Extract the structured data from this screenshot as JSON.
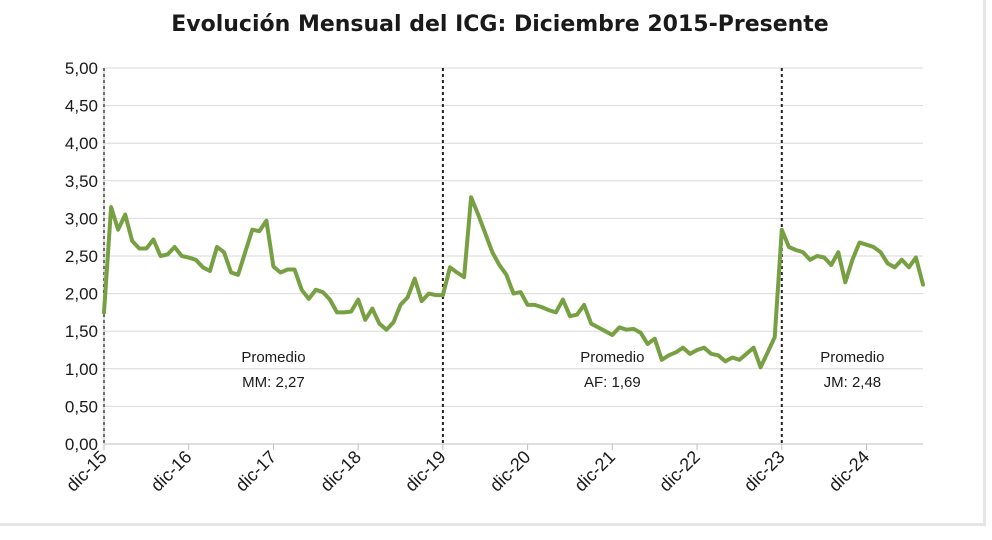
{
  "chart_data": {
    "type": "line",
    "title": "Evolución Mensual del ICG: Diciembre 2015-Presente",
    "xlabel": "",
    "ylabel": "",
    "ylim": [
      0,
      5
    ],
    "grid": true,
    "legend": "none",
    "y_ticks": [
      "0,00",
      "0,50",
      "1,00",
      "1,50",
      "2,00",
      "2,50",
      "3,00",
      "3,50",
      "4,00",
      "4,50",
      "5,00"
    ],
    "x_ticks": [
      "dic-15",
      "dic-16",
      "dic-17",
      "dic-18",
      "dic-19",
      "dic-20",
      "dic-21",
      "dic-22",
      "dic-23",
      "dic-24"
    ],
    "line_color": "#77a043",
    "period_dividers": [
      "dic-15",
      "dic-19",
      "dic-23"
    ],
    "annotations": [
      {
        "period": "dic-15 to dic-19",
        "line1": "Promedio",
        "line2": "MM: 2,27"
      },
      {
        "period": "dic-19 to dic-23",
        "line1": "Promedio",
        "line2": "AF: 1,69"
      },
      {
        "period": "dic-23 onward",
        "line1": "Promedio",
        "line2": "JM: 2,48"
      }
    ],
    "series": [
      {
        "values": [
          1.75,
          3.15,
          2.85,
          3.05,
          2.7,
          2.6,
          2.6,
          2.72,
          2.5,
          2.52,
          2.62,
          2.5,
          2.48,
          2.45,
          2.35,
          2.3,
          2.62,
          2.55,
          2.28,
          2.25,
          2.55,
          2.85,
          2.83,
          2.97,
          2.36,
          2.28,
          2.32,
          2.32,
          2.05,
          1.93,
          2.05,
          2.02,
          1.92,
          1.75,
          1.75,
          1.76,
          1.92,
          1.65,
          1.8,
          1.6,
          1.52,
          1.62,
          1.85,
          1.95,
          2.2,
          1.9,
          2.0,
          1.98,
          1.98,
          2.35,
          2.28,
          2.22,
          3.28,
          3.05,
          2.8,
          2.55,
          2.38,
          2.25,
          2.0,
          2.02,
          1.85,
          1.85,
          1.82,
          1.78,
          1.75,
          1.92,
          1.7,
          1.72,
          1.85,
          1.6,
          1.55,
          1.5,
          1.45,
          1.55,
          1.52,
          1.53,
          1.48,
          1.33,
          1.4,
          1.12,
          1.18,
          1.22,
          1.28,
          1.2,
          1.25,
          1.28,
          1.2,
          1.18,
          1.1,
          1.15,
          1.12,
          1.2,
          1.28,
          1.02,
          1.22,
          1.42,
          2.85,
          2.62,
          2.58,
          2.55,
          2.45,
          2.5,
          2.48,
          2.38,
          2.55,
          2.15,
          2.45,
          2.68,
          2.65,
          2.62,
          2.55,
          2.4,
          2.35,
          2.45,
          2.35,
          2.48,
          2.12
        ]
      }
    ]
  }
}
